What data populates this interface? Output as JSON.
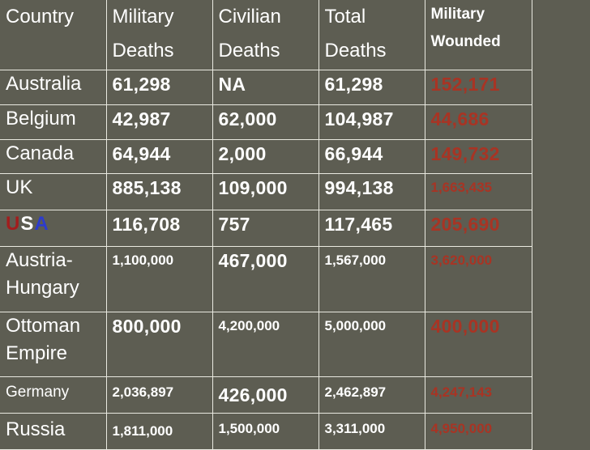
{
  "headers": {
    "country": "Country",
    "military_deaths": [
      "Military",
      "Deaths"
    ],
    "civilian_deaths": [
      "Civilian",
      "Deaths"
    ],
    "total_deaths": [
      "Total",
      "Deaths"
    ],
    "military_wounded": [
      "Military",
      "Wounded"
    ]
  },
  "rows": [
    {
      "country": "Australia",
      "military": "61,298",
      "civilian": "NA",
      "total": "61,298",
      "wounded": "152,171"
    },
    {
      "country": "Belgium",
      "military": "42,987",
      "civilian": "62,000",
      "total": "104,987",
      "wounded": "44,686"
    },
    {
      "country": "Canada",
      "military": "64,944",
      "civilian": "2,000",
      "total": "66,944",
      "wounded": "149,732"
    },
    {
      "country": "UK",
      "military": "885,138",
      "civilian": "109,000",
      "total": "994,138",
      "wounded": "1,663,435"
    },
    {
      "country_letters": [
        "U",
        "S",
        "A"
      ],
      "military": "116,708",
      "civilian": "757",
      "total": "117,465",
      "wounded": "205,690"
    },
    {
      "country": "Austria-Hungary",
      "military": "1,100,000",
      "civilian": "467,000",
      "total": "1,567,000",
      "wounded": "3,620,000"
    },
    {
      "country": "Ottoman Empire",
      "military": "800,000",
      "civilian": "4,200,000",
      "total": "5,000,000",
      "wounded": "400,000"
    },
    {
      "country": "Germany",
      "military": "2,036,897",
      "civilian": "426,000",
      "total": "2,462,897",
      "wounded": "4,247,143"
    },
    {
      "country": "Russia",
      "military": "1,811,000",
      "civilian": "1,500,000",
      "total": "3,311,000",
      "wounded": "4,950,000"
    }
  ],
  "colors": {
    "background": "#5d5d52",
    "wounded_text": "#a83424",
    "usa_u": "#a21d1d",
    "usa_s": "#ffffff",
    "usa_a": "#2d3ccc"
  }
}
